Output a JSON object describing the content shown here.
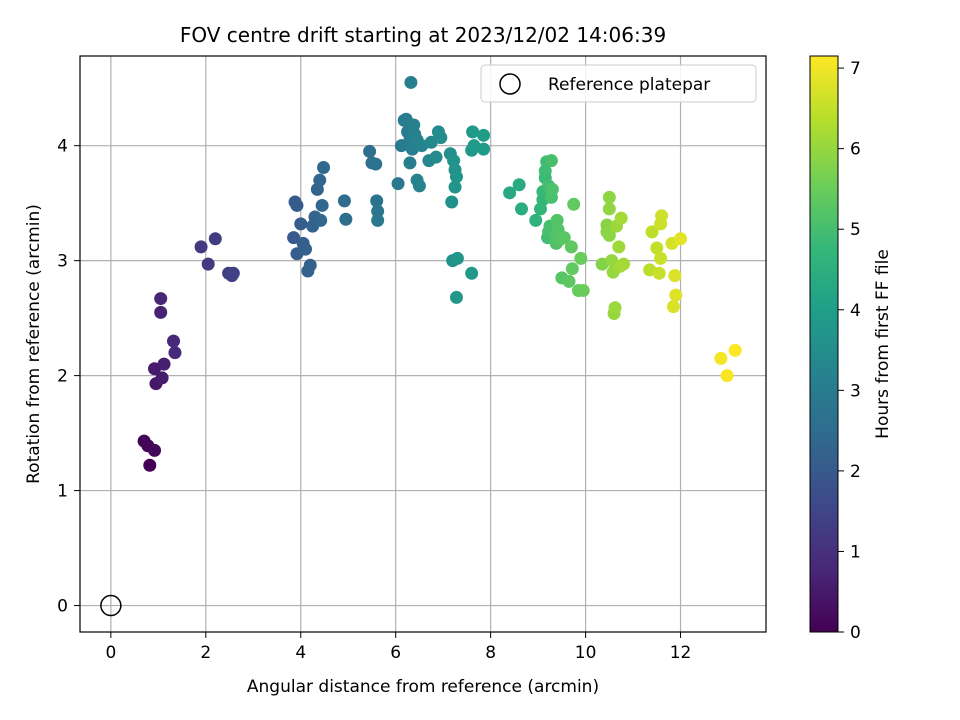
{
  "chart_data": {
    "type": "scatter",
    "title": "FOV centre drift starting at 2023/12/02 14:06:39",
    "xlabel": "Angular distance from reference (arcmin)",
    "ylabel": "Rotation from reference (arcmin)",
    "xlim": [
      -0.65,
      13.8
    ],
    "ylim": [
      -0.23,
      4.78
    ],
    "xticks": [
      0,
      2,
      4,
      6,
      8,
      10,
      12
    ],
    "yticks": [
      0,
      1,
      2,
      3,
      4
    ],
    "grid": true,
    "legend": {
      "location": "upper right",
      "entries": [
        "Reference platepar"
      ]
    },
    "colorbar": {
      "label": "Hours from first FF file",
      "range": [
        0,
        7.15
      ],
      "ticks": [
        0,
        1,
        2,
        3,
        4,
        5,
        6,
        7
      ],
      "colormap": "viridis"
    },
    "reference_point": {
      "name": "Reference platepar",
      "x": 0,
      "y": 0
    },
    "series": [
      {
        "points": [
          [
            0.82,
            1.22,
            0.0
          ],
          [
            0.7,
            1.43,
            0.04
          ],
          [
            0.78,
            1.39,
            0.08
          ],
          [
            0.92,
            1.35,
            0.12
          ],
          [
            0.95,
            1.93,
            0.45
          ],
          [
            0.92,
            2.06,
            0.5
          ],
          [
            1.08,
            1.98,
            0.55
          ],
          [
            1.12,
            2.1,
            0.62
          ],
          [
            1.05,
            2.55,
            0.7
          ],
          [
            1.05,
            2.67,
            0.75
          ],
          [
            1.32,
            2.3,
            0.8
          ],
          [
            1.35,
            2.2,
            0.85
          ],
          [
            1.9,
            3.12,
            1.2
          ],
          [
            2.05,
            2.97,
            1.25
          ],
          [
            2.2,
            3.19,
            1.3
          ],
          [
            2.48,
            2.89,
            1.35
          ],
          [
            2.55,
            2.87,
            1.4
          ],
          [
            2.58,
            2.89,
            1.42
          ],
          [
            3.85,
            3.2,
            2.0
          ],
          [
            3.88,
            3.51,
            2.05
          ],
          [
            3.92,
            3.48,
            2.08
          ],
          [
            3.92,
            3.06,
            2.1
          ],
          [
            4.0,
            3.32,
            2.12
          ],
          [
            4.05,
            3.15,
            2.15
          ],
          [
            4.1,
            3.1,
            2.18
          ],
          [
            4.15,
            2.91,
            2.2
          ],
          [
            4.2,
            2.96,
            2.22
          ],
          [
            4.25,
            3.3,
            2.25
          ],
          [
            4.3,
            3.38,
            2.28
          ],
          [
            4.35,
            3.62,
            2.3
          ],
          [
            4.4,
            3.7,
            2.32
          ],
          [
            4.42,
            3.35,
            2.35
          ],
          [
            4.45,
            3.48,
            2.38
          ],
          [
            4.48,
            3.81,
            2.4
          ],
          [
            4.92,
            3.52,
            2.5
          ],
          [
            4.95,
            3.36,
            2.55
          ],
          [
            5.45,
            3.95,
            2.6
          ],
          [
            5.5,
            3.85,
            2.65
          ],
          [
            5.58,
            3.84,
            2.7
          ],
          [
            5.6,
            3.52,
            2.75
          ],
          [
            5.62,
            3.43,
            2.8
          ],
          [
            5.62,
            3.35,
            2.85
          ],
          [
            6.05,
            3.67,
            2.9
          ],
          [
            6.12,
            4.0,
            2.92
          ],
          [
            6.18,
            4.22,
            2.95
          ],
          [
            6.22,
            4.23,
            2.98
          ],
          [
            6.25,
            4.12,
            3.0
          ],
          [
            6.3,
            4.05,
            3.02
          ],
          [
            6.3,
            3.85,
            3.05
          ],
          [
            6.32,
            4.55,
            3.08
          ],
          [
            6.35,
            3.97,
            3.1
          ],
          [
            6.38,
            4.18,
            3.12
          ],
          [
            6.4,
            4.1,
            3.15
          ],
          [
            6.45,
            4.05,
            3.18
          ],
          [
            6.45,
            3.7,
            3.2
          ],
          [
            6.5,
            3.65,
            3.22
          ],
          [
            6.55,
            4.0,
            3.25
          ],
          [
            6.7,
            3.87,
            3.3
          ],
          [
            6.75,
            4.03,
            3.35
          ],
          [
            6.85,
            3.9,
            3.4
          ],
          [
            6.9,
            4.12,
            3.45
          ],
          [
            6.95,
            4.07,
            3.5
          ],
          [
            7.15,
            3.93,
            3.55
          ],
          [
            7.18,
            3.51,
            3.6
          ],
          [
            7.2,
            3.0,
            3.62
          ],
          [
            7.22,
            3.87,
            3.65
          ],
          [
            7.25,
            3.79,
            3.68
          ],
          [
            7.25,
            3.64,
            3.7
          ],
          [
            7.28,
            3.73,
            3.72
          ],
          [
            7.3,
            3.02,
            3.75
          ],
          [
            7.28,
            2.68,
            3.78
          ],
          [
            7.6,
            2.89,
            3.8
          ],
          [
            7.6,
            3.96,
            3.82
          ],
          [
            7.62,
            4.12,
            3.85
          ],
          [
            7.65,
            4.0,
            3.88
          ],
          [
            7.85,
            3.97,
            3.92
          ],
          [
            7.85,
            4.09,
            3.95
          ],
          [
            8.4,
            3.59,
            4.3
          ],
          [
            8.6,
            3.66,
            4.35
          ],
          [
            8.65,
            3.45,
            4.4
          ],
          [
            8.95,
            3.35,
            4.6
          ],
          [
            9.05,
            3.45,
            4.7
          ],
          [
            9.1,
            3.53,
            4.75
          ],
          [
            9.1,
            3.6,
            4.8
          ],
          [
            9.15,
            3.72,
            4.85
          ],
          [
            9.15,
            3.78,
            4.9
          ],
          [
            9.18,
            3.86,
            4.92
          ],
          [
            9.2,
            3.2,
            4.95
          ],
          [
            9.22,
            3.65,
            4.98
          ],
          [
            9.22,
            3.25,
            5.0
          ],
          [
            9.25,
            3.3,
            5.02
          ],
          [
            9.28,
            3.87,
            5.05
          ],
          [
            9.28,
            3.55,
            5.08
          ],
          [
            9.3,
            3.62,
            5.1
          ],
          [
            9.35,
            3.22,
            5.12
          ],
          [
            9.38,
            3.15,
            5.15
          ],
          [
            9.4,
            3.35,
            5.18
          ],
          [
            9.42,
            3.27,
            5.2
          ],
          [
            9.45,
            3.18,
            5.22
          ],
          [
            9.5,
            2.85,
            5.25
          ],
          [
            9.55,
            3.2,
            5.28
          ],
          [
            9.65,
            2.82,
            5.32
          ],
          [
            9.7,
            3.12,
            5.35
          ],
          [
            9.72,
            2.93,
            5.38
          ],
          [
            9.75,
            3.49,
            5.4
          ],
          [
            9.85,
            2.74,
            5.45
          ],
          [
            9.9,
            3.02,
            5.48
          ],
          [
            9.95,
            2.74,
            5.5
          ],
          [
            10.35,
            2.97,
            5.8
          ],
          [
            10.45,
            3.31,
            5.85
          ],
          [
            10.45,
            3.25,
            5.88
          ],
          [
            10.5,
            3.22,
            5.9
          ],
          [
            10.5,
            3.55,
            5.92
          ],
          [
            10.5,
            3.45,
            5.95
          ],
          [
            10.55,
            3.0,
            5.98
          ],
          [
            10.58,
            2.9,
            6.0
          ],
          [
            10.6,
            2.54,
            6.02
          ],
          [
            10.62,
            2.59,
            6.05
          ],
          [
            10.65,
            3.3,
            6.08
          ],
          [
            10.7,
            3.12,
            6.1
          ],
          [
            10.72,
            2.95,
            6.12
          ],
          [
            10.75,
            3.37,
            6.15
          ],
          [
            10.8,
            2.97,
            6.18
          ],
          [
            11.35,
            2.92,
            6.4
          ],
          [
            11.4,
            3.25,
            6.45
          ],
          [
            11.5,
            3.11,
            6.5
          ],
          [
            11.55,
            2.89,
            6.55
          ],
          [
            11.58,
            3.02,
            6.58
          ],
          [
            11.58,
            3.32,
            6.6
          ],
          [
            11.6,
            3.39,
            6.62
          ],
          [
            11.82,
            3.15,
            6.7
          ],
          [
            11.85,
            2.6,
            6.75
          ],
          [
            11.88,
            2.87,
            6.78
          ],
          [
            11.9,
            2.7,
            6.8
          ],
          [
            12.0,
            3.19,
            6.85
          ],
          [
            12.85,
            2.15,
            7.05
          ],
          [
            12.98,
            2.0,
            7.1
          ],
          [
            13.15,
            2.22,
            7.15
          ]
        ]
      }
    ]
  }
}
